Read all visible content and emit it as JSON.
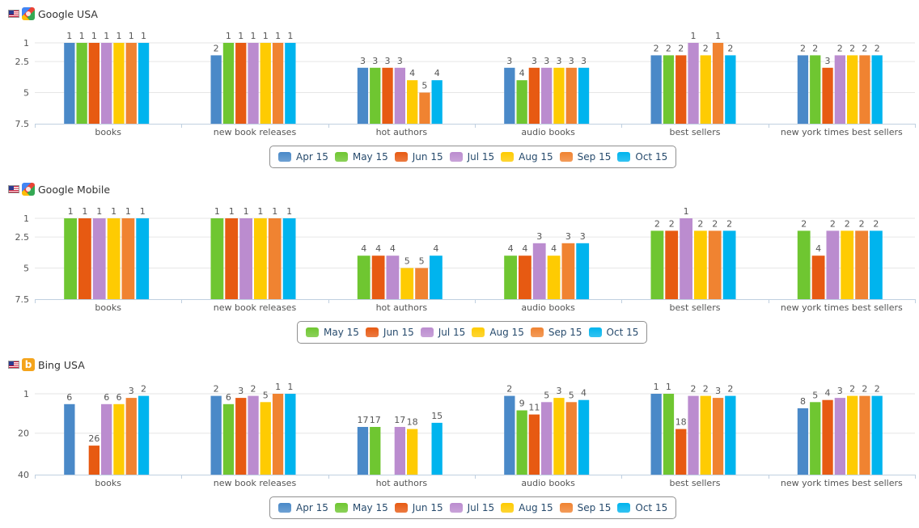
{
  "panels": [
    {
      "title": "Google USA",
      "flag_icon": "us-flag-icon",
      "engine_icon": "google-icon",
      "engine_glyph": "",
      "legend": [
        "Apr 15",
        "May 15",
        "Jun 15",
        "Jul 15",
        "Aug 15",
        "Sep 15",
        "Oct 15"
      ]
    },
    {
      "title": "Google Mobile",
      "flag_icon": "us-flag-icon",
      "engine_icon": "google-icon",
      "engine_glyph": "",
      "legend": [
        "May 15",
        "Jun 15",
        "Jul 15",
        "Aug 15",
        "Sep 15",
        "Oct 15"
      ]
    },
    {
      "title": "Bing USA",
      "flag_icon": "us-flag-icon",
      "engine_icon": "bing-icon",
      "engine_glyph": "b",
      "legend": [
        "Apr 15",
        "May 15",
        "Jun 15",
        "Jul 15",
        "Aug 15",
        "Sep 15",
        "Oct 15"
      ]
    }
  ],
  "series_colors": {
    "Apr 15": "#4a89c8",
    "May 15": "#6fc631",
    "Jun 15": "#e75a12",
    "Jul 15": "#bb8ccf",
    "Aug 15": "#fecb02",
    "Sep 15": "#f08331",
    "Oct 15": "#00b4ee"
  },
  "chart_data": [
    {
      "type": "bar",
      "title": "Google USA",
      "xlabel": "",
      "ylabel": "",
      "y_reversed": true,
      "ylim": [
        1,
        7.5
      ],
      "yticks": [
        1,
        2.5,
        5,
        7.5
      ],
      "grid": true,
      "legend_position": "bottom-center",
      "categories": [
        "books",
        "new book releases",
        "hot authors",
        "audio books",
        "best sellers",
        "new york times best sellers"
      ],
      "series": [
        {
          "name": "Apr 15",
          "values": [
            1,
            2,
            3,
            3,
            2,
            2
          ]
        },
        {
          "name": "May 15",
          "values": [
            1,
            1,
            3,
            4,
            2,
            2
          ]
        },
        {
          "name": "Jun 15",
          "values": [
            1,
            1,
            3,
            3,
            2,
            3
          ]
        },
        {
          "name": "Jul 15",
          "values": [
            1,
            1,
            3,
            3,
            1,
            2
          ]
        },
        {
          "name": "Aug 15",
          "values": [
            1,
            1,
            4,
            3,
            2,
            2
          ]
        },
        {
          "name": "Sep 15",
          "values": [
            1,
            1,
            5,
            3,
            1,
            2
          ]
        },
        {
          "name": "Oct 15",
          "values": [
            1,
            1,
            4,
            3,
            2,
            2
          ]
        }
      ]
    },
    {
      "type": "bar",
      "title": "Google Mobile",
      "xlabel": "",
      "ylabel": "",
      "y_reversed": true,
      "ylim": [
        1,
        7.5
      ],
      "yticks": [
        1,
        2.5,
        5,
        7.5
      ],
      "grid": true,
      "legend_position": "bottom-center",
      "categories": [
        "books",
        "new book releases",
        "hot authors",
        "audio books",
        "best sellers",
        "new york times best sellers"
      ],
      "series": [
        {
          "name": "May 15",
          "values": [
            1,
            1,
            4,
            4,
            2,
            2
          ]
        },
        {
          "name": "Jun 15",
          "values": [
            1,
            1,
            4,
            4,
            2,
            4
          ]
        },
        {
          "name": "Jul 15",
          "values": [
            1,
            1,
            4,
            3,
            1,
            2
          ]
        },
        {
          "name": "Aug 15",
          "values": [
            1,
            1,
            5,
            4,
            2,
            2
          ]
        },
        {
          "name": "Sep 15",
          "values": [
            1,
            1,
            5,
            3,
            2,
            2
          ]
        },
        {
          "name": "Oct 15",
          "values": [
            1,
            1,
            4,
            3,
            2,
            2
          ]
        }
      ]
    },
    {
      "type": "bar",
      "title": "Bing USA",
      "xlabel": "",
      "ylabel": "",
      "y_reversed": true,
      "ylim": [
        1,
        40
      ],
      "yticks": [
        1,
        20,
        40
      ],
      "grid": true,
      "legend_position": "bottom-center",
      "categories": [
        "books",
        "new book releases",
        "hot authors",
        "audio books",
        "best sellers",
        "new york times best sellers"
      ],
      "series": [
        {
          "name": "Apr 15",
          "values": [
            6,
            2,
            17,
            2,
            1,
            8
          ]
        },
        {
          "name": "May 15",
          "values": [
            null,
            6,
            17,
            9,
            1,
            5
          ]
        },
        {
          "name": "Jun 15",
          "values": [
            26,
            3,
            null,
            11,
            18,
            4
          ]
        },
        {
          "name": "Jul 15",
          "values": [
            6,
            2,
            17,
            5,
            2,
            3
          ]
        },
        {
          "name": "Aug 15",
          "values": [
            6,
            5,
            18,
            3,
            2,
            2
          ]
        },
        {
          "name": "Sep 15",
          "values": [
            3,
            1,
            null,
            5,
            3,
            2
          ]
        },
        {
          "name": "Oct 15",
          "values": [
            2,
            1,
            15,
            4,
            2,
            2
          ]
        }
      ]
    }
  ]
}
